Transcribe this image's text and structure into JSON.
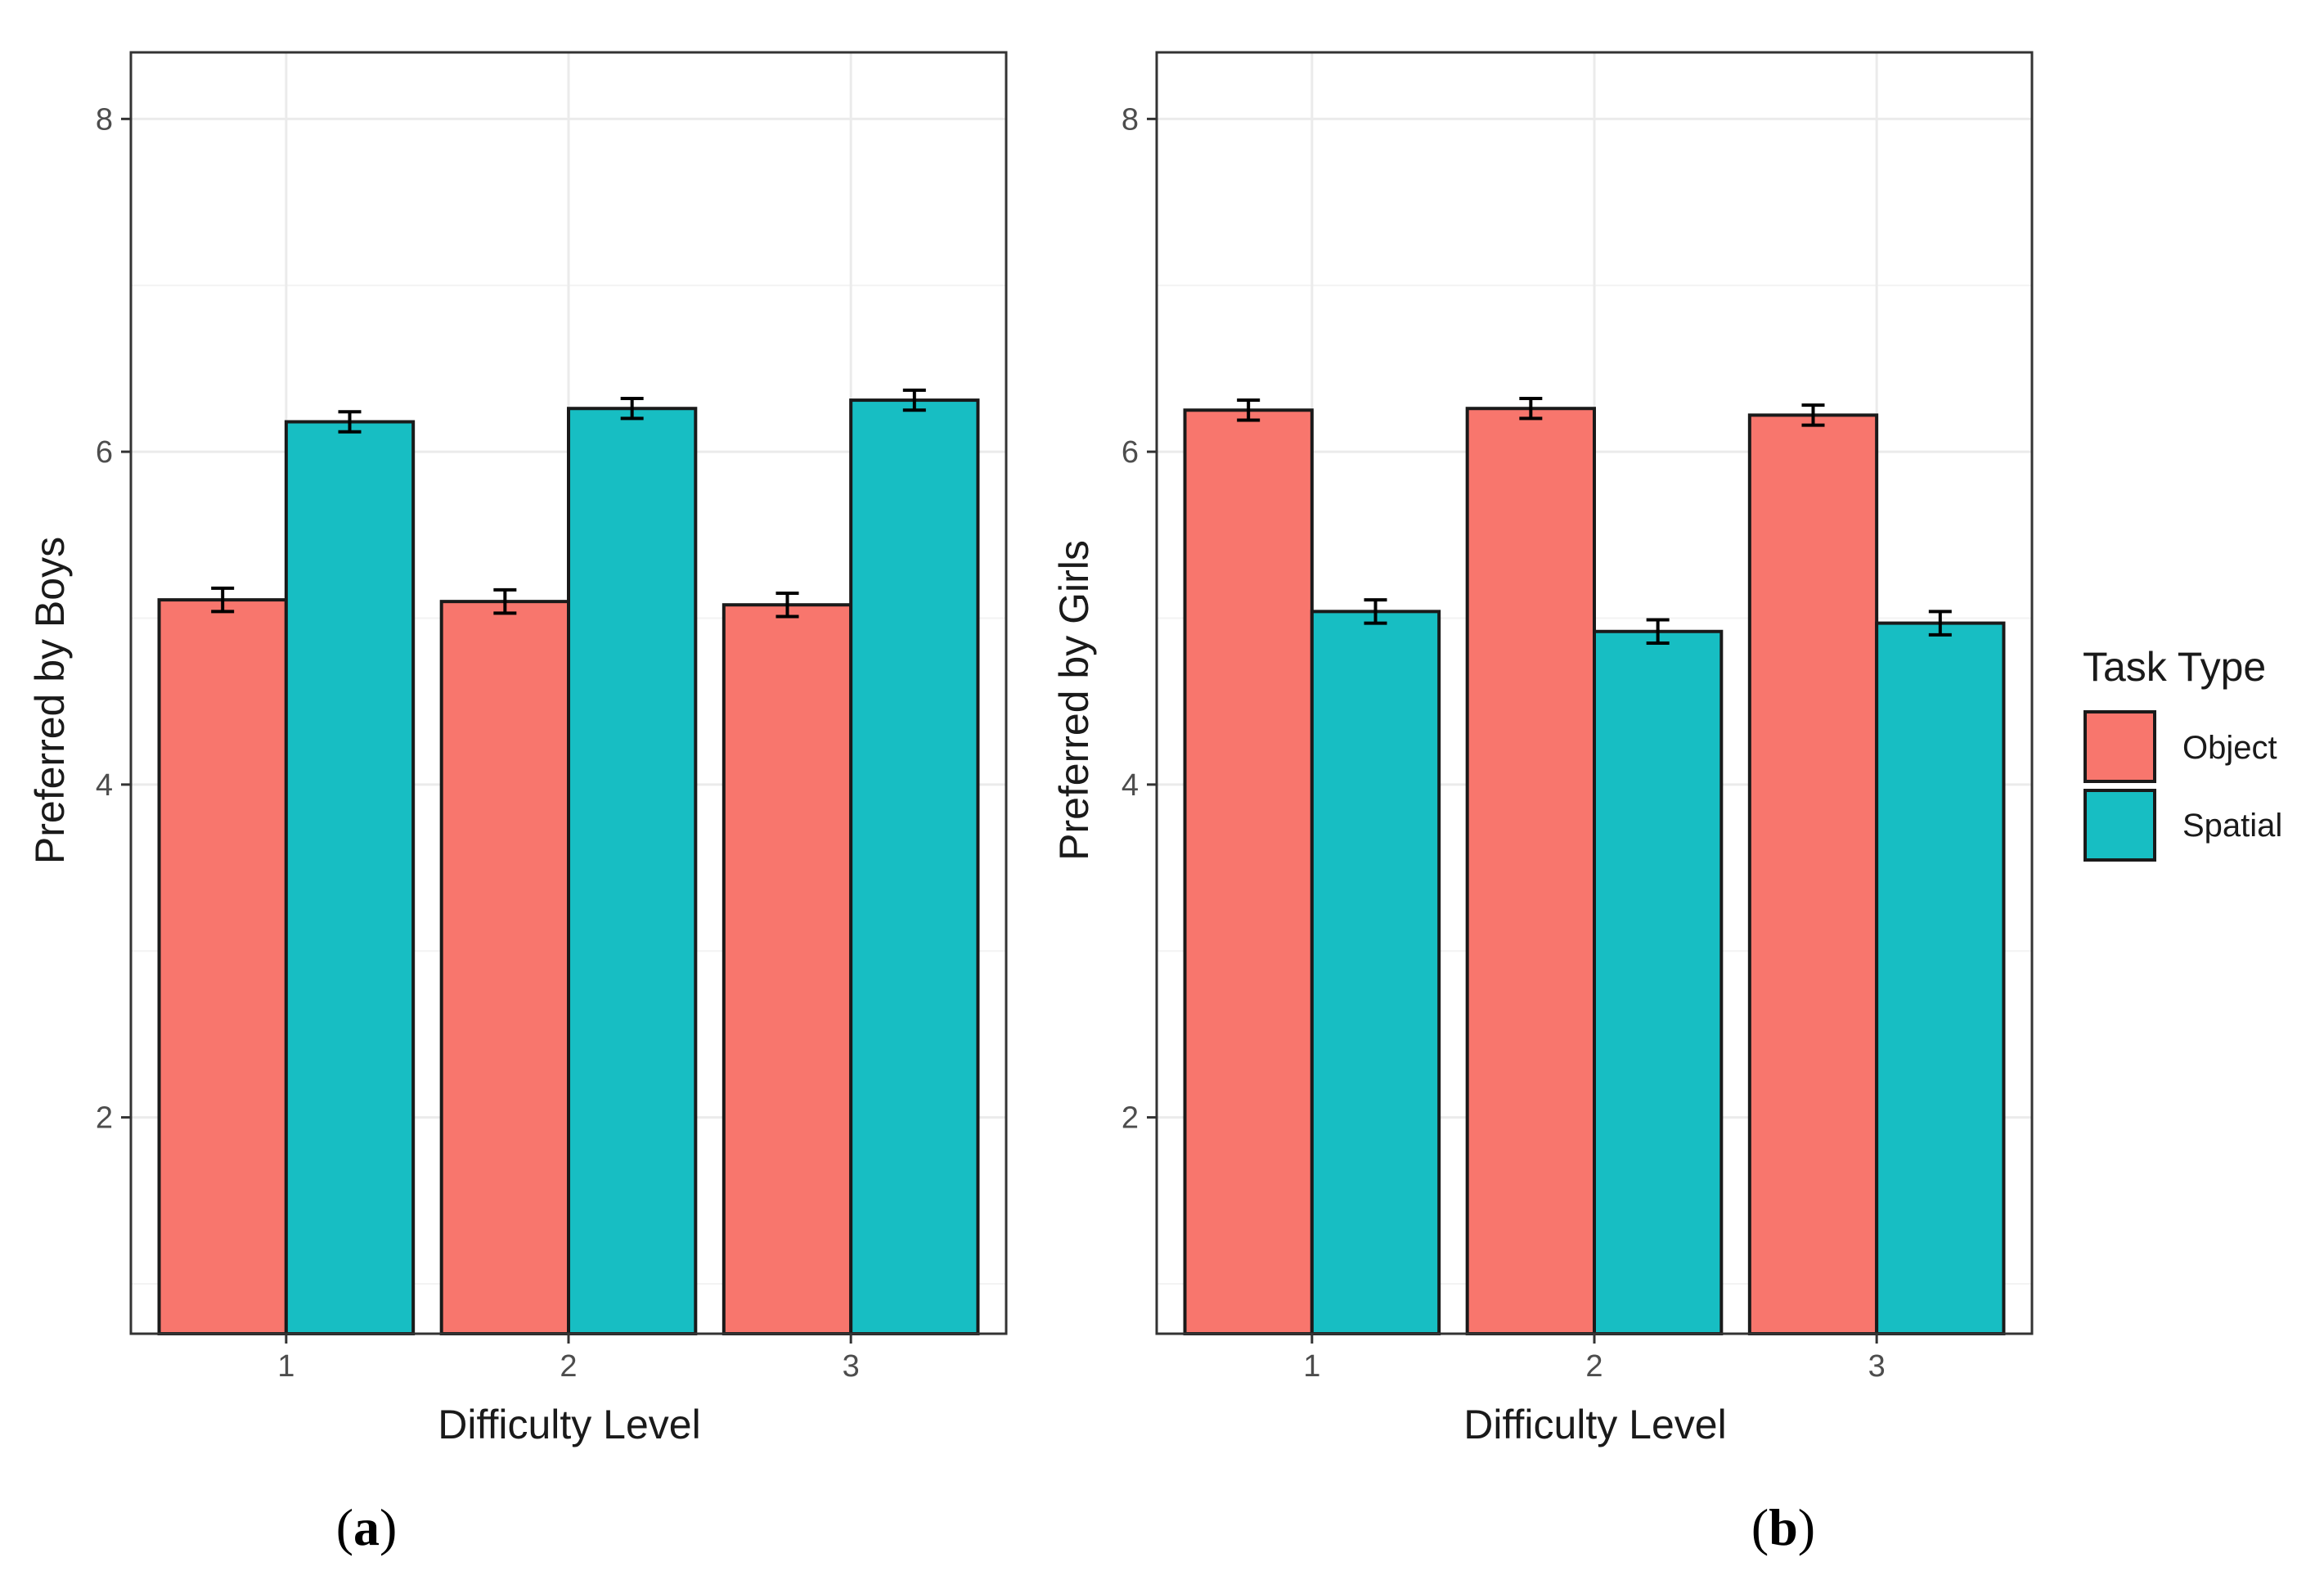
{
  "chart_data": [
    {
      "type": "bar",
      "panel_label": "a",
      "xlabel": "Difficulty Level",
      "ylabel": "Preferred by Boys",
      "categories": [
        "1",
        "2",
        "3"
      ],
      "ylim": [
        0.7,
        8.4
      ],
      "yticks": [
        2,
        4,
        6,
        8
      ],
      "grid": true,
      "series": [
        {
          "name": "Object",
          "values": [
            5.11,
            5.1,
            5.08
          ],
          "errors": [
            0.07,
            0.07,
            0.07
          ]
        },
        {
          "name": "Spatial",
          "values": [
            6.18,
            6.26,
            6.31
          ],
          "errors": [
            0.06,
            0.06,
            0.06
          ]
        }
      ]
    },
    {
      "type": "bar",
      "panel_label": "b",
      "xlabel": "Difficulty Level",
      "ylabel": "Preferred by Girls",
      "categories": [
        "1",
        "2",
        "3"
      ],
      "ylim": [
        0.7,
        8.4
      ],
      "yticks": [
        2,
        4,
        6,
        8
      ],
      "grid": true,
      "series": [
        {
          "name": "Object",
          "values": [
            6.25,
            6.26,
            6.22
          ],
          "errors": [
            0.06,
            0.06,
            0.06
          ]
        },
        {
          "name": "Spatial",
          "values": [
            5.04,
            4.92,
            4.97
          ],
          "errors": [
            0.07,
            0.07,
            0.07
          ]
        }
      ]
    }
  ],
  "legend": {
    "title": "Task Type",
    "entries": [
      "Object",
      "Spatial"
    ],
    "position": "right"
  },
  "colors": {
    "Object": "#F8766D",
    "Spatial": "#17BEC3",
    "bar_outline": "#1a1a1a",
    "grid_major": "#ebebeb",
    "grid_minor": "#f3f3f3",
    "panel_border": "#333333"
  }
}
